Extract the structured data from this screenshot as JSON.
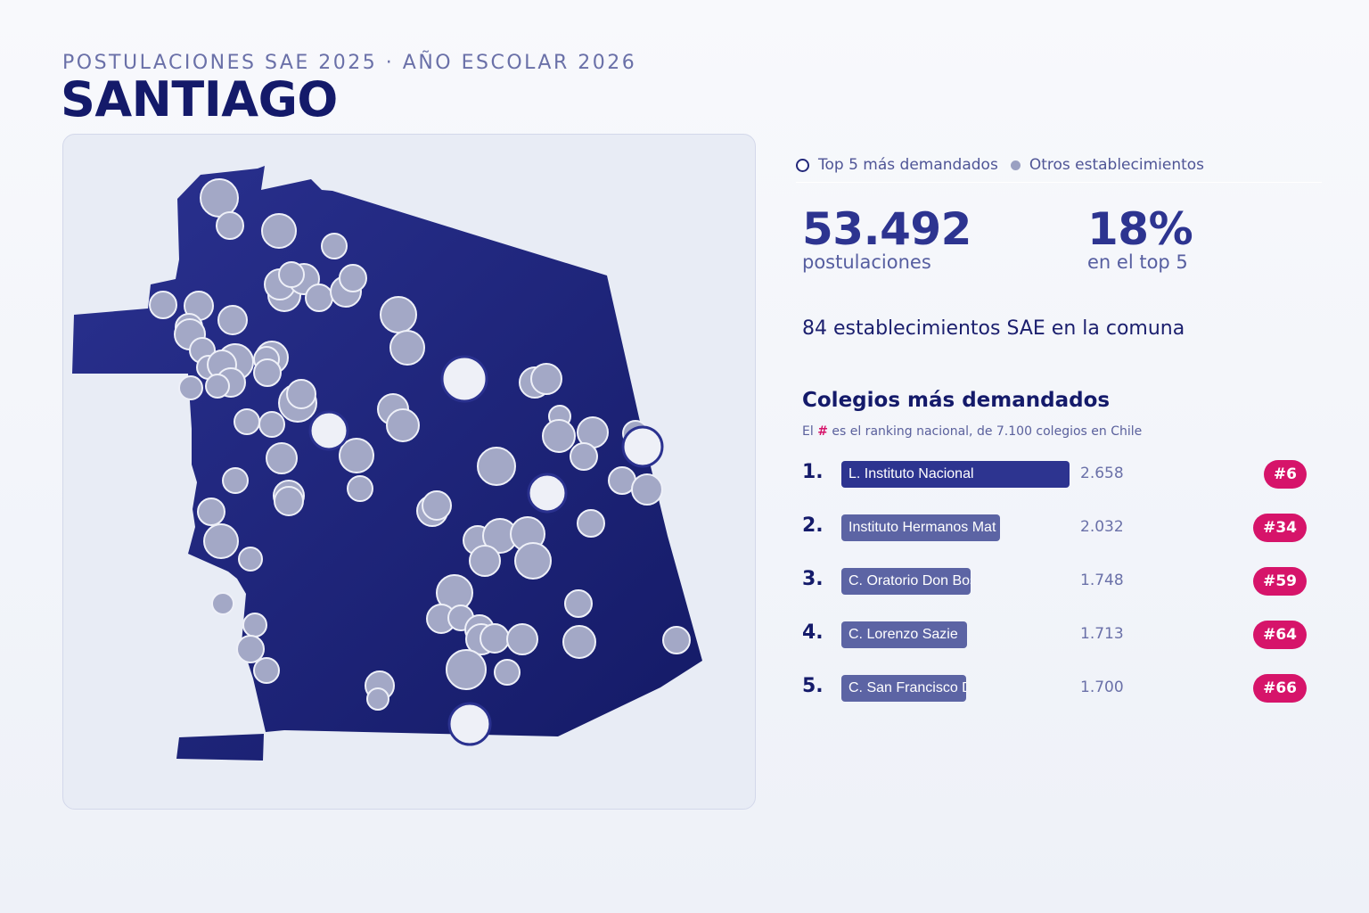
{
  "header": {
    "supertitle": "POSTULACIONES SAE 2025 · AÑO ESCOLAR 2026",
    "title": "SANTIAGO"
  },
  "legend": {
    "top_label": "Top 5 más demandados",
    "other_label": "Otros establecimientos"
  },
  "stats": {
    "applications_value": "53.492",
    "applications_label": "postulaciones",
    "top5_share_value": "18%",
    "top5_share_label": "en el top 5",
    "schools_line": "84 establecimientos SAE en la comuna"
  },
  "ranking": {
    "title": "Colegios más demandados",
    "note_prefix": "El ",
    "note_hash": "#",
    "note_suffix": " es el ranking nacional, de 7.100 colegios en Chile",
    "items": [
      {
        "pos": "1.",
        "name": "L. Instituto Nacional",
        "value_label": "2.658",
        "value": 2658,
        "badge": "#6",
        "bar_color": "#2d3490"
      },
      {
        "pos": "2.",
        "name": "Instituto Hermanos Mat",
        "value_label": "2.032",
        "value": 2032,
        "badge": "#34",
        "bar_color": "#5c64a4"
      },
      {
        "pos": "3.",
        "name": "C. Oratorio Don Bosco",
        "value_label": "1.748",
        "value": 1748,
        "badge": "#59",
        "bar_color": "#5c64a4"
      },
      {
        "pos": "4.",
        "name": "C. Lorenzo Sazie",
        "value_label": "1.713",
        "value": 1713,
        "badge": "#64",
        "bar_color": "#5c64a4"
      },
      {
        "pos": "5.",
        "name": "C. San Francisco De A",
        "value_label": "1.700",
        "value": 1700,
        "badge": "#66",
        "bar_color": "#5c64a4"
      }
    ]
  },
  "colors": {
    "map_fill": "#1f2580",
    "other_dot": "#a3a8c6",
    "top_dot": "#eef0f7",
    "accent": "#d6146a"
  }
}
